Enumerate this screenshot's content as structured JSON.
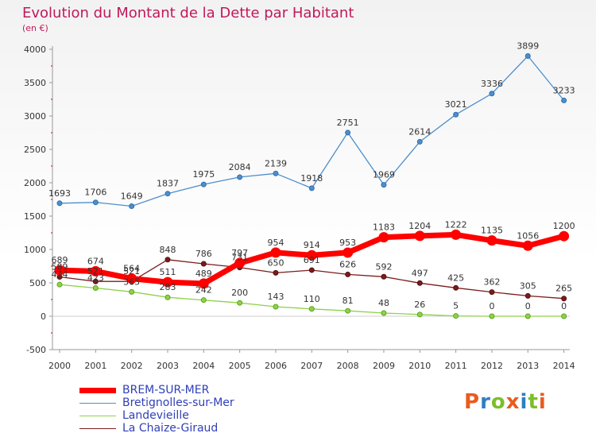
{
  "header": {
    "title": "Evolution du Montant de la Dette par Habitant",
    "unit": "(en €)"
  },
  "chart_data": {
    "type": "line",
    "title": "Evolution du Montant de la Dette par Habitant",
    "ylabel": "(en €)",
    "xlabel": "",
    "x": [
      "2000",
      "2001",
      "2002",
      "2003",
      "2004",
      "2005",
      "2006",
      "2007",
      "2008",
      "2009",
      "2010",
      "2011",
      "2012",
      "2013",
      "2014"
    ],
    "ylim": [
      -500,
      4000
    ],
    "yticks": [
      "-500",
      "0",
      "500",
      "1000",
      "1500",
      "2000",
      "2500",
      "3000",
      "3500",
      "4000"
    ],
    "grid": false,
    "legend_position": "bottom-left",
    "series": [
      {
        "name": "BREM-SUR-MER",
        "color": "#ff0000",
        "values": [
          689,
          674,
          564,
          511,
          489,
          797,
          954,
          914,
          953,
          1183,
          1204,
          1222,
          1135,
          1056,
          1200
        ],
        "labels": [
          "689",
          "674",
          "564",
          "511",
          "489",
          "797",
          "954",
          "914",
          "953",
          "1183",
          "1204",
          "1222",
          "1135",
          "1056",
          "1200"
        ]
      },
      {
        "name": "Bretignolles-sur-Mer",
        "color": "#4d8fcc",
        "values": [
          1693,
          1706,
          1649,
          1837,
          1975,
          2084,
          2139,
          1918,
          2751,
          1969,
          2614,
          3021,
          3336,
          3899,
          3233
        ],
        "labels": [
          "1693",
          "1706",
          "1649",
          "1837",
          "1975",
          "2084",
          "2139",
          "1918",
          "2751",
          "1969",
          "2614",
          "3021",
          "3336",
          "3899",
          "3233"
        ]
      },
      {
        "name": "Landevieille",
        "color": "#8fd24a",
        "values": [
          474,
          423,
          365,
          283,
          242,
          200,
          143,
          110,
          81,
          48,
          26,
          5,
          0,
          0,
          0
        ],
        "labels": [
          "474",
          "423",
          "365",
          "283",
          "242",
          "200",
          "143",
          "110",
          "81",
          "48",
          "26",
          "5",
          "0",
          "0",
          "0"
        ]
      },
      {
        "name": "La Chaize-Giraud",
        "color": "#7a1c1c",
        "values": [
          589,
          521,
          521,
          848,
          786,
          731,
          650,
          691,
          626,
          592,
          497,
          425,
          362,
          305,
          265
        ],
        "labels": [
          "589",
          "521",
          "521",
          "848",
          "786",
          "731",
          "650",
          "691",
          "626",
          "592",
          "497",
          "425",
          "362",
          "305",
          "265"
        ]
      }
    ]
  },
  "logo": {
    "text": "Proxiti",
    "colors": [
      "#e85c1e",
      "#2d7fc1",
      "#7bbf2a",
      "#e85c1e",
      "#2d7fc1",
      "#7bbf2a",
      "#e85c1e"
    ]
  }
}
